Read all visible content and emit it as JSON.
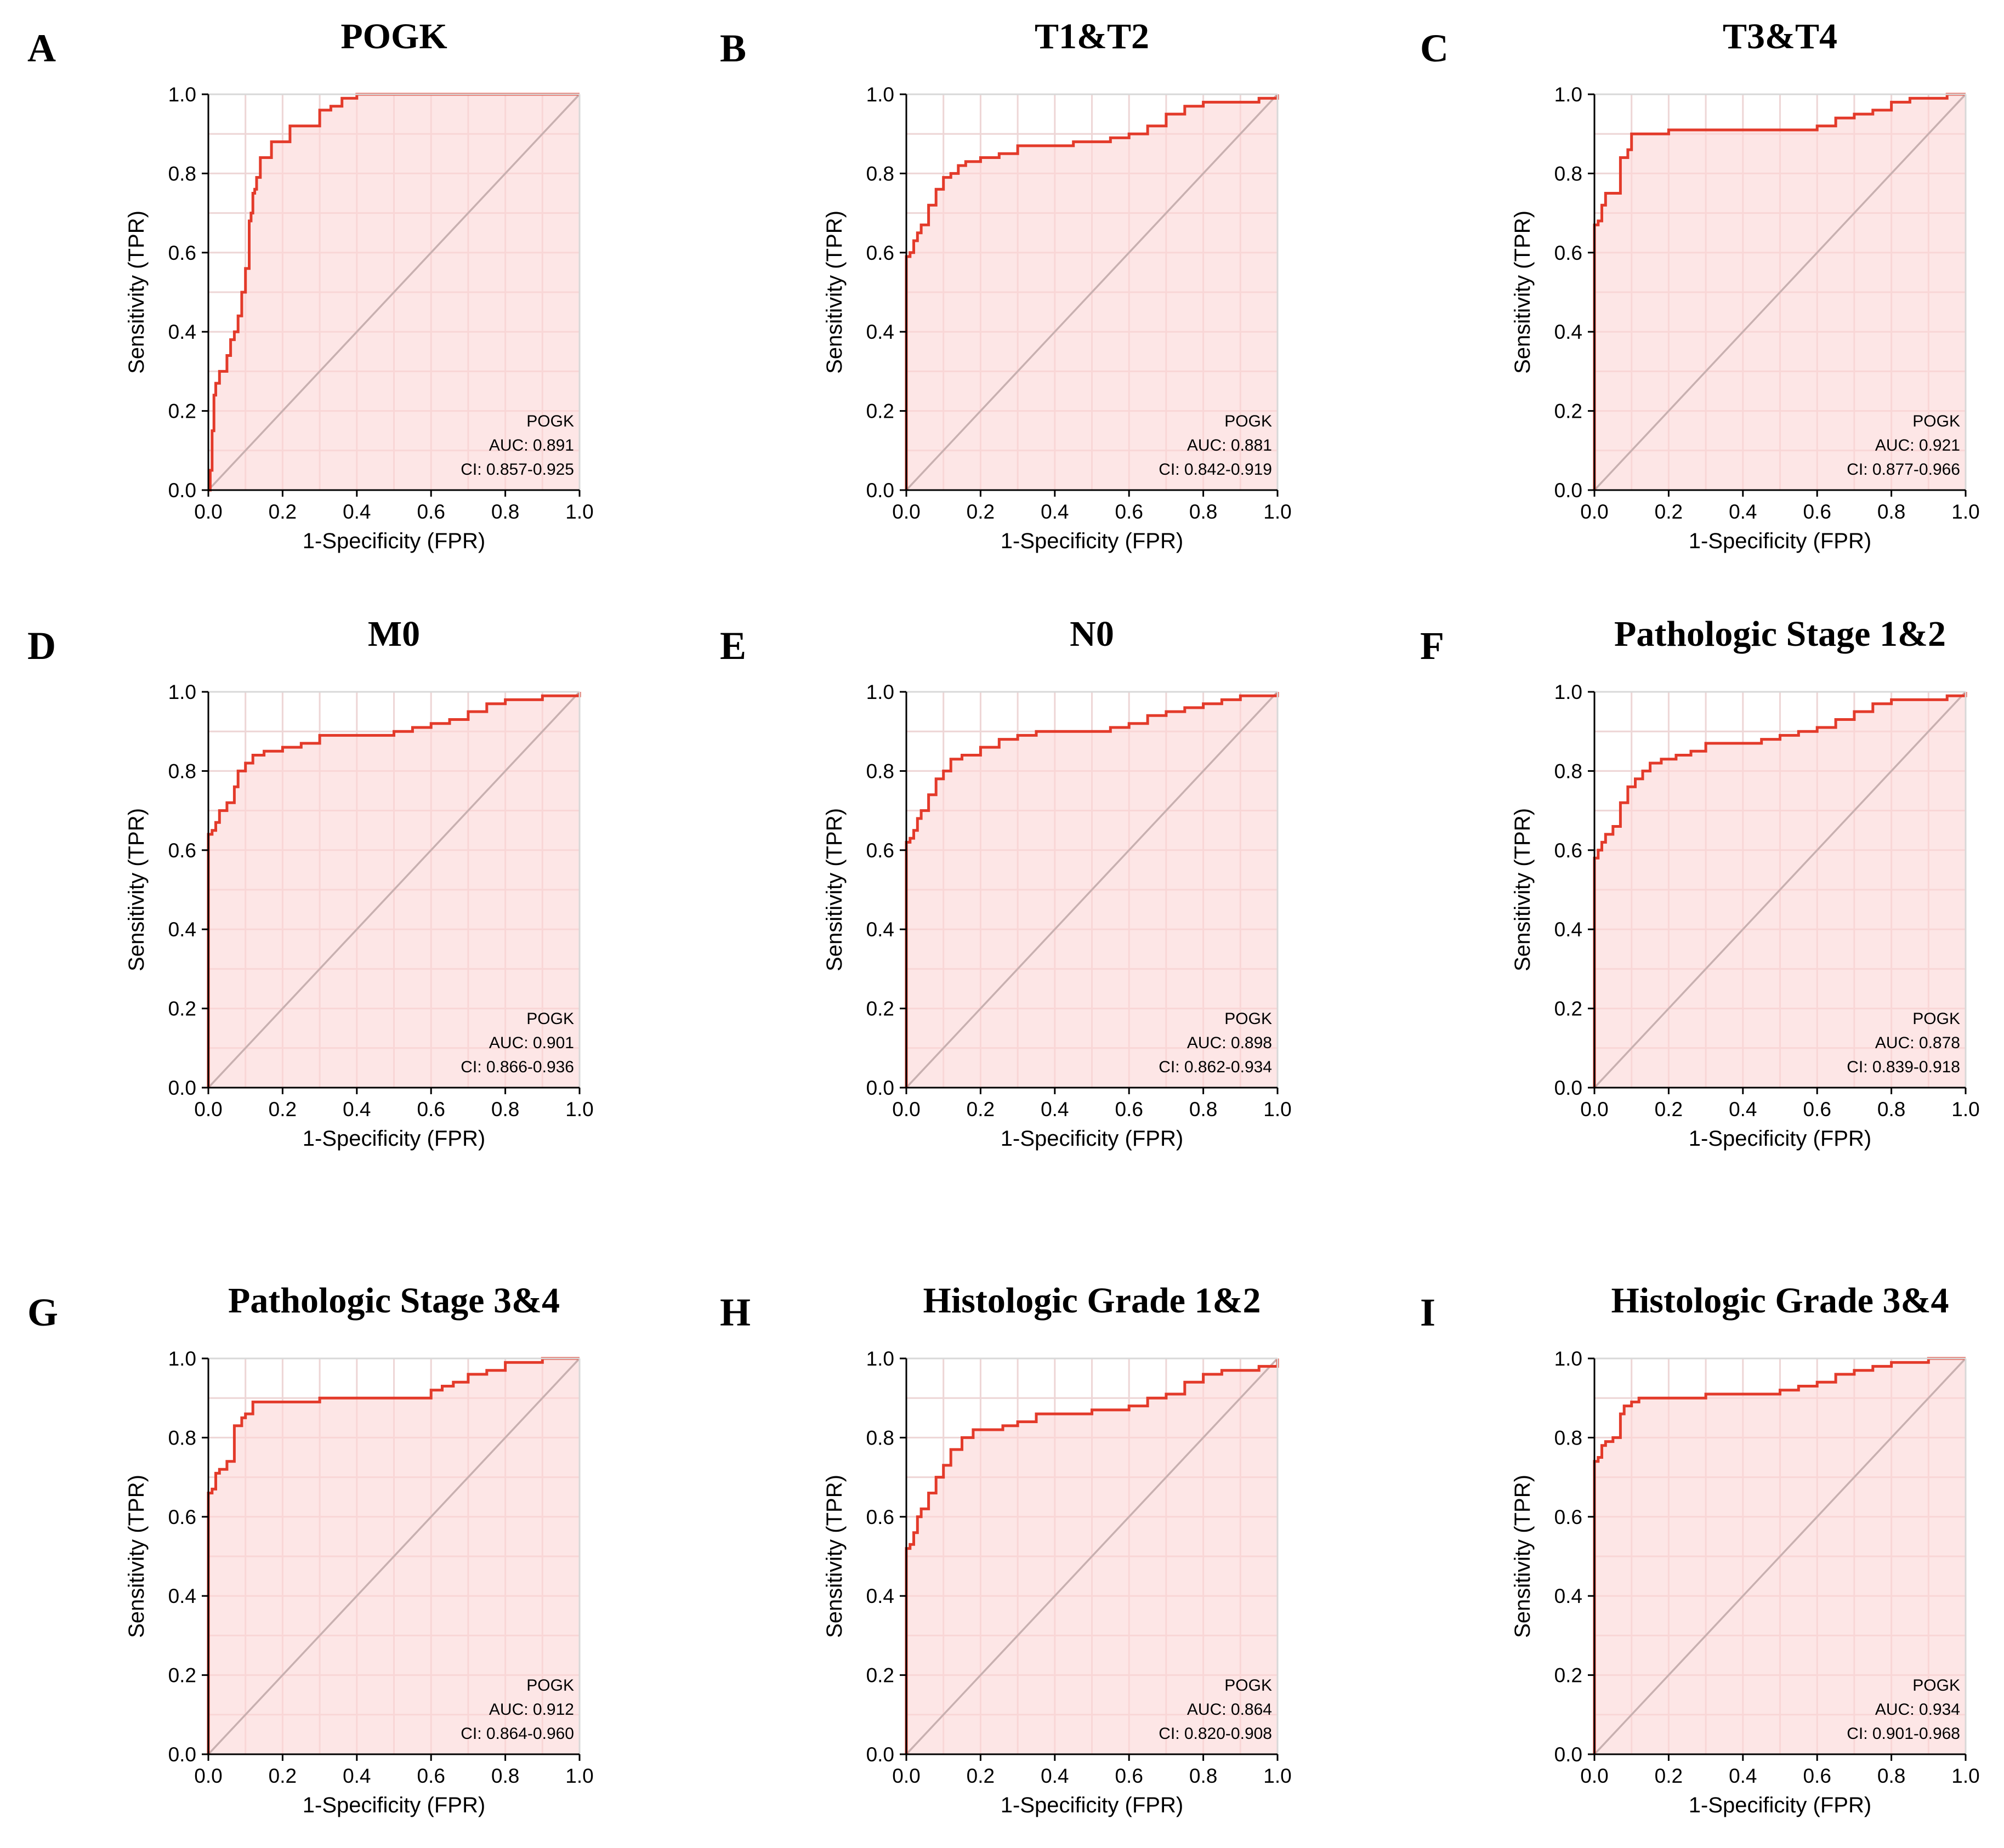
{
  "chart_data": [
    {
      "type": "line",
      "letter": "A",
      "title": "POGK",
      "xlabel": "1-Specificity (FPR)",
      "ylabel": "Sensitivity (TPR)",
      "xlim": [
        0,
        1
      ],
      "ylim": [
        0,
        1
      ],
      "xticks": [
        "0.0",
        "0.2",
        "0.4",
        "0.6",
        "0.8",
        "1.0"
      ],
      "yticks": [
        "0.0",
        "0.2",
        "0.4",
        "0.6",
        "0.8",
        "1.0"
      ],
      "legend": {
        "position": "bottom-right",
        "series": "POGK",
        "auc": "AUC: 0.891",
        "ci": "CI: 0.857-0.925"
      },
      "x": [
        0,
        0.005,
        0.01,
        0.015,
        0.02,
        0.03,
        0.04,
        0.05,
        0.06,
        0.07,
        0.08,
        0.09,
        0.1,
        0.11,
        0.115,
        0.12,
        0.125,
        0.13,
        0.14,
        0.15,
        0.17,
        0.19,
        0.22,
        0.25,
        0.27,
        0.3,
        0.33,
        0.36,
        0.4,
        1.0
      ],
      "y": [
        0,
        0.05,
        0.15,
        0.24,
        0.27,
        0.3,
        0.3,
        0.34,
        0.38,
        0.4,
        0.44,
        0.5,
        0.56,
        0.68,
        0.7,
        0.75,
        0.76,
        0.79,
        0.84,
        0.84,
        0.88,
        0.88,
        0.92,
        0.92,
        0.92,
        0.96,
        0.97,
        0.99,
        1.0,
        1.0
      ]
    },
    {
      "type": "line",
      "letter": "B",
      "title": "T1&T2",
      "xlabel": "1-Specificity (FPR)",
      "ylabel": "Sensitivity (TPR)",
      "xlim": [
        0,
        1
      ],
      "ylim": [
        0,
        1
      ],
      "xticks": [
        "0.0",
        "0.2",
        "0.4",
        "0.6",
        "0.8",
        "1.0"
      ],
      "yticks": [
        "0.0",
        "0.2",
        "0.4",
        "0.6",
        "0.8",
        "1.0"
      ],
      "legend": {
        "position": "bottom-right",
        "series": "POGK",
        "auc": "AUC: 0.881",
        "ci": "CI: 0.842-0.919"
      },
      "x": [
        0,
        0,
        0.01,
        0.02,
        0.03,
        0.04,
        0.06,
        0.08,
        0.1,
        0.12,
        0.14,
        0.16,
        0.2,
        0.25,
        0.3,
        0.35,
        0.4,
        0.45,
        0.5,
        0.55,
        0.6,
        0.65,
        0.7,
        0.75,
        0.8,
        0.85,
        0.9,
        0.95,
        1.0
      ],
      "y": [
        0,
        0.59,
        0.6,
        0.63,
        0.65,
        0.67,
        0.72,
        0.76,
        0.79,
        0.8,
        0.82,
        0.83,
        0.84,
        0.85,
        0.87,
        0.87,
        0.87,
        0.88,
        0.88,
        0.89,
        0.9,
        0.92,
        0.95,
        0.97,
        0.98,
        0.98,
        0.98,
        0.99,
        1.0
      ]
    },
    {
      "type": "line",
      "letter": "C",
      "title": "T3&T4",
      "xlabel": "1-Specificity (FPR)",
      "ylabel": "Sensitivity (TPR)",
      "xlim": [
        0,
        1
      ],
      "ylim": [
        0,
        1
      ],
      "xticks": [
        "0.0",
        "0.2",
        "0.4",
        "0.6",
        "0.8",
        "1.0"
      ],
      "yticks": [
        "0.0",
        "0.2",
        "0.4",
        "0.6",
        "0.8",
        "1.0"
      ],
      "legend": {
        "position": "bottom-right",
        "series": "POGK",
        "auc": "AUC: 0.921",
        "ci": "CI: 0.877-0.966"
      },
      "x": [
        0,
        0,
        0.01,
        0.02,
        0.03,
        0.05,
        0.07,
        0.09,
        0.1,
        0.12,
        0.2,
        0.3,
        0.4,
        0.5,
        0.55,
        0.6,
        0.65,
        0.7,
        0.75,
        0.8,
        0.85,
        0.9,
        0.95,
        1.0
      ],
      "y": [
        0,
        0.67,
        0.68,
        0.72,
        0.75,
        0.75,
        0.84,
        0.86,
        0.9,
        0.9,
        0.91,
        0.91,
        0.91,
        0.91,
        0.91,
        0.92,
        0.94,
        0.95,
        0.96,
        0.98,
        0.99,
        0.99,
        1.0,
        1.0
      ]
    },
    {
      "type": "line",
      "letter": "D",
      "title": "M0",
      "xlabel": "1-Specificity (FPR)",
      "ylabel": "Sensitivity (TPR)",
      "xlim": [
        0,
        1
      ],
      "ylim": [
        0,
        1
      ],
      "xticks": [
        "0.0",
        "0.2",
        "0.4",
        "0.6",
        "0.8",
        "1.0"
      ],
      "yticks": [
        "0.0",
        "0.2",
        "0.4",
        "0.6",
        "0.8",
        "1.0"
      ],
      "legend": {
        "position": "bottom-right",
        "series": "POGK",
        "auc": "AUC: 0.901",
        "ci": "CI: 0.866-0.936"
      },
      "x": [
        0,
        0,
        0.01,
        0.02,
        0.03,
        0.05,
        0.07,
        0.08,
        0.1,
        0.12,
        0.15,
        0.2,
        0.25,
        0.3,
        0.35,
        0.4,
        0.45,
        0.5,
        0.55,
        0.6,
        0.65,
        0.7,
        0.75,
        0.8,
        0.85,
        0.9,
        0.95,
        1.0
      ],
      "y": [
        0,
        0.64,
        0.65,
        0.67,
        0.7,
        0.72,
        0.76,
        0.8,
        0.82,
        0.84,
        0.85,
        0.86,
        0.87,
        0.89,
        0.89,
        0.89,
        0.89,
        0.9,
        0.91,
        0.92,
        0.93,
        0.95,
        0.97,
        0.98,
        0.98,
        0.99,
        0.99,
        1.0
      ]
    },
    {
      "type": "line",
      "letter": "E",
      "title": "N0",
      "xlabel": "1-Specificity (FPR)",
      "ylabel": "Sensitivity (TPR)",
      "xlim": [
        0,
        1
      ],
      "ylim": [
        0,
        1
      ],
      "xticks": [
        "0.0",
        "0.2",
        "0.4",
        "0.6",
        "0.8",
        "1.0"
      ],
      "yticks": [
        "0.0",
        "0.2",
        "0.4",
        "0.6",
        "0.8",
        "1.0"
      ],
      "legend": {
        "position": "bottom-right",
        "series": "POGK",
        "auc": "AUC: 0.898",
        "ci": "CI: 0.862-0.934"
      },
      "x": [
        0,
        0,
        0.01,
        0.02,
        0.03,
        0.04,
        0.06,
        0.08,
        0.1,
        0.12,
        0.15,
        0.2,
        0.25,
        0.3,
        0.35,
        0.4,
        0.45,
        0.5,
        0.55,
        0.6,
        0.65,
        0.7,
        0.75,
        0.8,
        0.85,
        0.9,
        0.95,
        1.0
      ],
      "y": [
        0,
        0.62,
        0.63,
        0.65,
        0.68,
        0.7,
        0.74,
        0.78,
        0.8,
        0.83,
        0.84,
        0.86,
        0.88,
        0.89,
        0.9,
        0.9,
        0.9,
        0.9,
        0.91,
        0.92,
        0.94,
        0.95,
        0.96,
        0.97,
        0.98,
        0.99,
        0.99,
        1.0
      ]
    },
    {
      "type": "line",
      "letter": "F",
      "title": "Pathologic Stage 1&2",
      "xlabel": "1-Specificity (FPR)",
      "ylabel": "Sensitivity (TPR)",
      "xlim": [
        0,
        1
      ],
      "ylim": [
        0,
        1
      ],
      "xticks": [
        "0.0",
        "0.2",
        "0.4",
        "0.6",
        "0.8",
        "1.0"
      ],
      "yticks": [
        "0.0",
        "0.2",
        "0.4",
        "0.6",
        "0.8",
        "1.0"
      ],
      "legend": {
        "position": "bottom-right",
        "series": "POGK",
        "auc": "AUC: 0.878",
        "ci": "CI: 0.839-0.918"
      },
      "x": [
        0,
        0,
        0.01,
        0.02,
        0.03,
        0.05,
        0.07,
        0.09,
        0.11,
        0.13,
        0.15,
        0.18,
        0.22,
        0.26,
        0.3,
        0.35,
        0.4,
        0.45,
        0.5,
        0.55,
        0.6,
        0.65,
        0.7,
        0.75,
        0.8,
        0.85,
        0.9,
        0.95,
        1.0
      ],
      "y": [
        0,
        0.58,
        0.6,
        0.62,
        0.64,
        0.66,
        0.72,
        0.76,
        0.78,
        0.8,
        0.82,
        0.83,
        0.84,
        0.85,
        0.87,
        0.87,
        0.87,
        0.88,
        0.89,
        0.9,
        0.91,
        0.93,
        0.95,
        0.97,
        0.98,
        0.98,
        0.98,
        0.99,
        1.0
      ]
    },
    {
      "type": "line",
      "letter": "G",
      "title": "Pathologic Stage 3&4",
      "xlabel": "1-Specificity (FPR)",
      "ylabel": "Sensitivity (TPR)",
      "xlim": [
        0,
        1
      ],
      "ylim": [
        0,
        1
      ],
      "xticks": [
        "0.0",
        "0.2",
        "0.4",
        "0.6",
        "0.8",
        "1.0"
      ],
      "yticks": [
        "0.0",
        "0.2",
        "0.4",
        "0.6",
        "0.8",
        "1.0"
      ],
      "legend": {
        "position": "bottom-right",
        "series": "POGK",
        "auc": "AUC: 0.912",
        "ci": "CI: 0.864-0.960"
      },
      "x": [
        0,
        0,
        0.01,
        0.02,
        0.03,
        0.05,
        0.07,
        0.09,
        0.1,
        0.12,
        0.2,
        0.3,
        0.4,
        0.5,
        0.58,
        0.6,
        0.63,
        0.66,
        0.7,
        0.75,
        0.8,
        0.85,
        0.9,
        0.95,
        1.0
      ],
      "y": [
        0,
        0.66,
        0.67,
        0.71,
        0.72,
        0.74,
        0.83,
        0.85,
        0.86,
        0.89,
        0.89,
        0.9,
        0.9,
        0.9,
        0.9,
        0.92,
        0.93,
        0.94,
        0.96,
        0.97,
        0.99,
        0.99,
        1.0,
        1.0,
        1.0
      ]
    },
    {
      "type": "line",
      "letter": "H",
      "title": "Histologic Grade 1&2",
      "xlabel": "1-Specificity (FPR)",
      "ylabel": "Sensitivity (TPR)",
      "xlim": [
        0,
        1
      ],
      "ylim": [
        0,
        1
      ],
      "xticks": [
        "0.0",
        "0.2",
        "0.4",
        "0.6",
        "0.8",
        "1.0"
      ],
      "yticks": [
        "0.0",
        "0.2",
        "0.4",
        "0.6",
        "0.8",
        "1.0"
      ],
      "legend": {
        "position": "bottom-right",
        "series": "POGK",
        "auc": "AUC: 0.864",
        "ci": "CI: 0.820-0.908"
      },
      "x": [
        0,
        0,
        0.01,
        0.02,
        0.03,
        0.04,
        0.06,
        0.08,
        0.1,
        0.12,
        0.15,
        0.18,
        0.22,
        0.26,
        0.3,
        0.35,
        0.4,
        0.45,
        0.5,
        0.55,
        0.6,
        0.65,
        0.7,
        0.75,
        0.8,
        0.85,
        0.9,
        0.95,
        1.0
      ],
      "y": [
        0,
        0.52,
        0.53,
        0.56,
        0.6,
        0.62,
        0.66,
        0.7,
        0.73,
        0.77,
        0.8,
        0.82,
        0.82,
        0.83,
        0.84,
        0.86,
        0.86,
        0.86,
        0.87,
        0.87,
        0.88,
        0.9,
        0.91,
        0.94,
        0.96,
        0.97,
        0.97,
        0.98,
        1.0
      ]
    },
    {
      "type": "line",
      "letter": "I",
      "title": "Histologic Grade 3&4",
      "xlabel": "1-Specificity (FPR)",
      "ylabel": "Sensitivity (TPR)",
      "xlim": [
        0,
        1
      ],
      "ylim": [
        0,
        1
      ],
      "xticks": [
        "0.0",
        "0.2",
        "0.4",
        "0.6",
        "0.8",
        "1.0"
      ],
      "yticks": [
        "0.0",
        "0.2",
        "0.4",
        "0.6",
        "0.8",
        "1.0"
      ],
      "legend": {
        "position": "bottom-right",
        "series": "POGK",
        "auc": "AUC: 0.934",
        "ci": "CI: 0.901-0.968"
      },
      "x": [
        0,
        0,
        0.01,
        0.02,
        0.03,
        0.05,
        0.07,
        0.08,
        0.1,
        0.12,
        0.2,
        0.3,
        0.4,
        0.5,
        0.55,
        0.6,
        0.65,
        0.7,
        0.75,
        0.8,
        0.85,
        0.9,
        0.95,
        1.0
      ],
      "y": [
        0,
        0.74,
        0.75,
        0.78,
        0.79,
        0.8,
        0.86,
        0.88,
        0.89,
        0.9,
        0.9,
        0.91,
        0.91,
        0.92,
        0.93,
        0.94,
        0.96,
        0.97,
        0.98,
        0.99,
        0.99,
        1.0,
        1.0,
        1.0
      ]
    }
  ]
}
